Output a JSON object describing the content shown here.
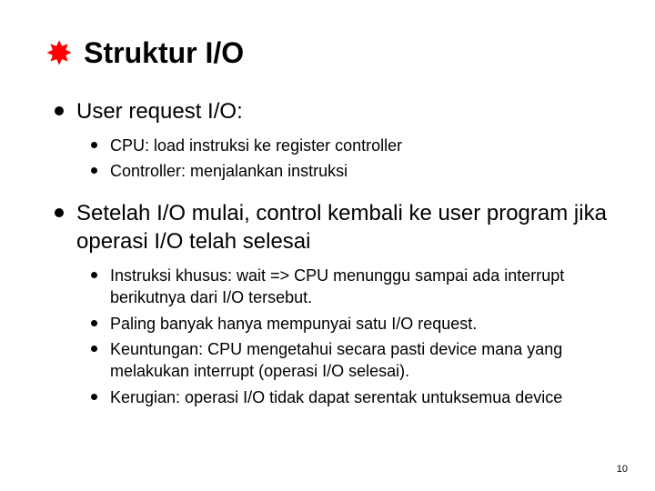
{
  "title": "Struktur I/O",
  "page_number": "10",
  "colors": {
    "star": "#ff0000",
    "text": "#000000",
    "background": "#ffffff"
  },
  "bullets": [
    {
      "text": "User request I/O:",
      "children": [
        {
          "text": "CPU: load instruksi ke register controller"
        },
        {
          "text": "Controller: menjalankan instruksi"
        }
      ]
    },
    {
      "text": "Setelah I/O mulai, control kembali ke user program jika operasi I/O telah selesai",
      "children": [
        {
          "text": "Instruksi khusus: wait => CPU menunggu sampai ada interrupt berikutnya dari I/O tersebut."
        },
        {
          "text": "Paling banyak hanya mempunyai satu I/O request."
        },
        {
          "text": "Keuntungan: CPU mengetahui secara pasti device mana yang melakukan interrupt (operasi I/O selesai)."
        },
        {
          "text": "Kerugian: operasi I/O tidak dapat serentak untuksemua device"
        }
      ]
    }
  ]
}
